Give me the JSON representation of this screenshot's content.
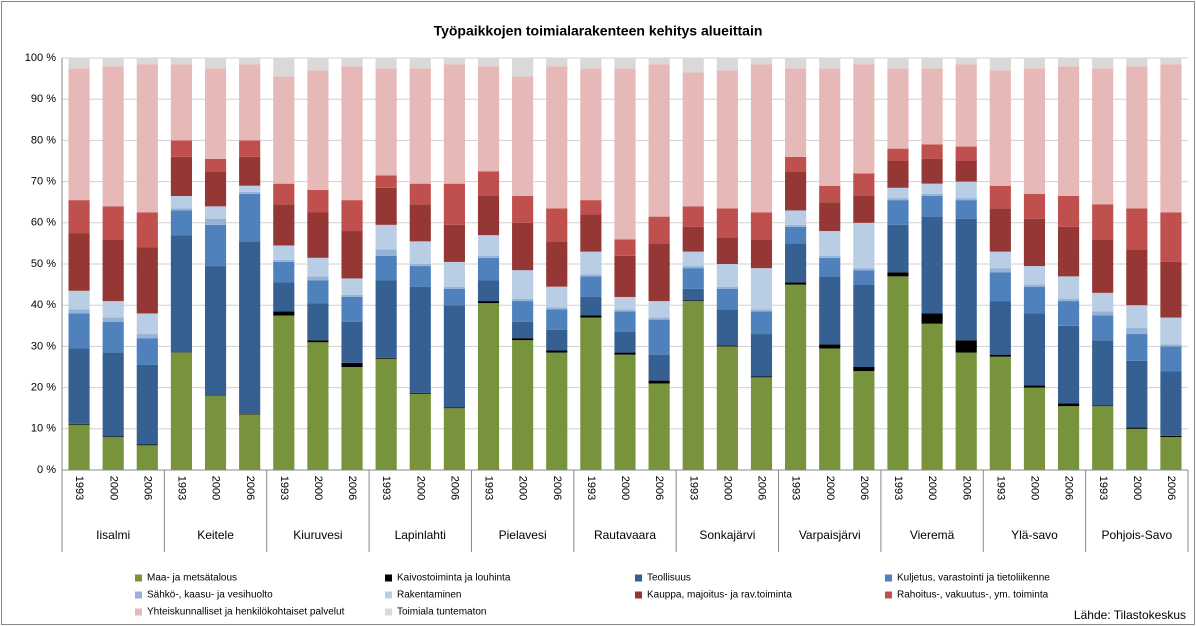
{
  "chart_data": {
    "type": "stacked_bar",
    "title": "Työpaikkojen toimialarakenteen kehitys alueittain",
    "source": "Lähde: Tilastokeskus",
    "groups": [
      "Iisalmi",
      "Keitele",
      "Kiuruvesi",
      "Lapinlahti",
      "Pielavesi",
      "Rautavaara",
      "Sonkajärvi",
      "Varpaisjärvi",
      "Vieremä",
      "Ylä-savo",
      "Pohjois-Savo"
    ],
    "categories": [
      "1993",
      "2000",
      "2006",
      "1993",
      "2000",
      "2006",
      "1993",
      "2000",
      "2006",
      "1993",
      "2000",
      "2006",
      "1993",
      "2000",
      "2006",
      "1993",
      "2000",
      "2006",
      "1993",
      "2000",
      "2006",
      "1993",
      "2000",
      "2006",
      "1993",
      "2000",
      "2006",
      "1993",
      "2000",
      "2006",
      "1993",
      "2000",
      "2006"
    ],
    "ylim": [
      0,
      100
    ],
    "yticks": [
      {
        "value": 0,
        "label": "0 %"
      },
      {
        "value": 10,
        "label": "10 %"
      },
      {
        "value": 20,
        "label": "20 %"
      },
      {
        "value": 30,
        "label": "30 %"
      },
      {
        "value": 40,
        "label": "40 %"
      },
      {
        "value": 50,
        "label": "50 %"
      },
      {
        "value": 60,
        "label": "60 %"
      },
      {
        "value": 70,
        "label": "70 %"
      },
      {
        "value": 80,
        "label": "80 %"
      },
      {
        "value": 90,
        "label": "90 %"
      },
      {
        "value": 100,
        "label": "100 %"
      }
    ],
    "grid": true,
    "legend": "bottom",
    "series": [
      {
        "name": "Maa- ja metsätalous",
        "color": "#77933c",
        "values": [
          11,
          8,
          6,
          28.5,
          18,
          13.5,
          37.5,
          31,
          25,
          27,
          18.5,
          15,
          40.5,
          31.5,
          28.5,
          37,
          28,
          21,
          41,
          30,
          22.5,
          45,
          29.5,
          24,
          47,
          35.5,
          28.5,
          27.5,
          20,
          15.5,
          15.5,
          10,
          8
        ]
      },
      {
        "name": "Kaivostoiminta ja louhinta",
        "color": "#000000",
        "values": [
          0.2,
          0.2,
          0.2,
          0.1,
          0.1,
          0.1,
          1,
          0.5,
          1,
          0.2,
          0.2,
          0.2,
          0.5,
          0.5,
          0.5,
          0.5,
          0.5,
          0.7,
          0.2,
          0.2,
          0.2,
          0.5,
          1,
          1,
          1,
          2.5,
          3,
          0.5,
          0.5,
          0.7,
          0.2,
          0.3,
          0.3
        ]
      },
      {
        "name": "Teollisuus",
        "color": "#376092",
        "values": [
          18.3,
          20.3,
          19.3,
          28.4,
          31.4,
          41.9,
          7,
          9,
          10,
          18.8,
          25.8,
          24.8,
          5,
          4,
          5,
          4.5,
          5,
          6.3,
          2.8,
          8.8,
          10.3,
          9.5,
          16.5,
          20,
          11.5,
          23.5,
          29.5,
          13,
          17.5,
          18.8,
          15.8,
          16.2,
          15.7
        ]
      },
      {
        "name": "Kuljetus, varastointi ja tietoliikenne",
        "color": "#4f81bd",
        "values": [
          8.5,
          7.5,
          6.5,
          6,
          10,
          11.5,
          5,
          5.5,
          6,
          6,
          5,
          4,
          5.5,
          5,
          5,
          5,
          5,
          8.5,
          5,
          5,
          5.5,
          4,
          4.5,
          3.5,
          6,
          5,
          4.5,
          7,
          6.5,
          6,
          6,
          6.5,
          6
        ]
      },
      {
        "name": "Sähkö-, kaasu- ja vesihuolto",
        "color": "#95b3d7",
        "values": [
          1,
          1,
          1,
          0.5,
          1.5,
          0.5,
          0.5,
          1,
          0.5,
          1.5,
          0.5,
          0.5,
          0.5,
          0.5,
          0.5,
          0.5,
          0.5,
          0.5,
          0.5,
          0.5,
          0.5,
          0.5,
          0.5,
          0.5,
          0.5,
          0.5,
          0.5,
          1,
          0.5,
          0.5,
          1,
          1.5,
          0.5
        ]
      },
      {
        "name": "Rakentaminen",
        "color": "#b9cde5",
        "values": [
          4.5,
          4,
          5,
          3,
          3,
          1.5,
          3.5,
          4.5,
          4,
          6,
          5.5,
          6,
          5,
          7,
          5,
          5.5,
          3,
          4,
          3.5,
          5.5,
          10,
          3.5,
          6,
          11,
          2.5,
          2.5,
          4,
          4,
          4.5,
          5.5,
          4.5,
          5.5,
          6.5
        ]
      },
      {
        "name": "Kauppa, majoitus- ja rav.toiminta",
        "color": "#953735",
        "values": [
          14,
          15,
          16,
          9.5,
          8.5,
          7,
          10,
          11,
          11.5,
          9,
          9,
          9,
          9.5,
          11.5,
          11,
          9,
          10,
          14,
          6,
          6.5,
          7,
          9.5,
          7,
          6.5,
          6.5,
          6,
          5,
          10.5,
          11.5,
          12,
          13,
          13.5,
          13.5
        ]
      },
      {
        "name": "Rahoitus-, vakuutus-, ym. toiminta",
        "color": "#c0504d",
        "values": [
          8,
          8,
          8.5,
          4,
          3,
          4,
          5,
          5.5,
          7.5,
          3,
          5,
          10,
          6,
          6.5,
          8,
          3.5,
          4,
          6.5,
          5,
          7,
          6.5,
          3.5,
          4,
          5.5,
          3,
          3.5,
          3.5,
          5.5,
          6,
          7.5,
          8.5,
          10,
          12
        ]
      },
      {
        "name": "Yhteiskunnalliset ja henkilökohtaiset palvelut",
        "color": "#e6b9b8",
        "values": [
          32,
          34,
          36,
          18.5,
          22,
          18.5,
          26,
          29,
          32.5,
          26,
          28,
          29,
          25.5,
          29,
          34.5,
          32,
          41.5,
          37,
          32.5,
          33.5,
          36,
          21.5,
          28.5,
          26.5,
          19.5,
          18.5,
          20,
          28,
          30.5,
          31.5,
          33,
          34.5,
          36
        ]
      },
      {
        "name": "Toimiala tuntematon",
        "color": "#d9d9d9",
        "values": [
          2.5,
          2,
          1.5,
          1.5,
          2.5,
          1.5,
          4.5,
          3,
          2,
          2.5,
          2.5,
          1.5,
          2,
          4.5,
          2,
          2.5,
          2.5,
          1.5,
          3.5,
          3,
          1.5,
          2.5,
          2.5,
          1.5,
          2.5,
          2.5,
          1.5,
          3,
          2.5,
          2,
          2.5,
          2,
          1.5
        ]
      }
    ]
  }
}
